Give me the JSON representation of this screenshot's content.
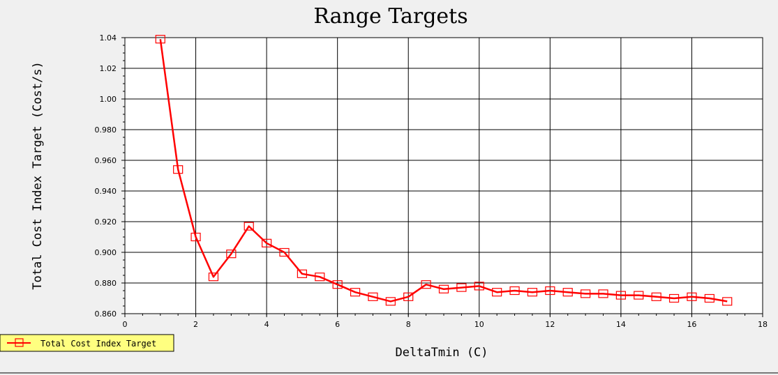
{
  "chart_data": {
    "type": "line",
    "title": "Range Targets",
    "xlabel": "DeltaTmin (C)",
    "ylabel": "Total Cost Index Target (Cost/s)",
    "xlim": [
      0,
      18
    ],
    "ylim": [
      0.86,
      1.04
    ],
    "x_ticks": [
      "0",
      "2",
      "4",
      "6",
      "8",
      "10",
      "12",
      "14",
      "16",
      "18"
    ],
    "x_tick_values": [
      0,
      2,
      4,
      6,
      8,
      10,
      12,
      14,
      16,
      18
    ],
    "y_ticks": [
      "0.860",
      "0.880",
      "0.900",
      "0.920",
      "0.940",
      "0.960",
      "0.980",
      "1.00",
      "1.02",
      "1.04"
    ],
    "y_tick_values": [
      0.86,
      0.88,
      0.9,
      0.92,
      0.94,
      0.96,
      0.98,
      1.0,
      1.02,
      1.04
    ],
    "grid": true,
    "legend_position": "bottom-left",
    "series": [
      {
        "name": "Total Cost Index Target",
        "color": "#ff0000",
        "marker": "square-open",
        "x": [
          1.0,
          1.5,
          2.0,
          2.5,
          3.0,
          3.5,
          4.0,
          4.5,
          5.0,
          5.5,
          6.0,
          6.5,
          7.0,
          7.5,
          8.0,
          8.5,
          9.0,
          9.5,
          10.0,
          10.5,
          11.0,
          11.5,
          12.0,
          12.5,
          13.0,
          13.5,
          14.0,
          14.5,
          15.0,
          15.5,
          16.0,
          16.5,
          17.0
        ],
        "y": [
          1.039,
          0.954,
          0.91,
          0.884,
          0.899,
          0.917,
          0.906,
          0.9,
          0.886,
          0.884,
          0.879,
          0.874,
          0.871,
          0.868,
          0.871,
          0.879,
          0.876,
          0.877,
          0.878,
          0.874,
          0.875,
          0.874,
          0.875,
          0.874,
          0.873,
          0.873,
          0.872,
          0.872,
          0.871,
          0.87,
          0.871,
          0.87,
          0.868
        ]
      }
    ]
  }
}
